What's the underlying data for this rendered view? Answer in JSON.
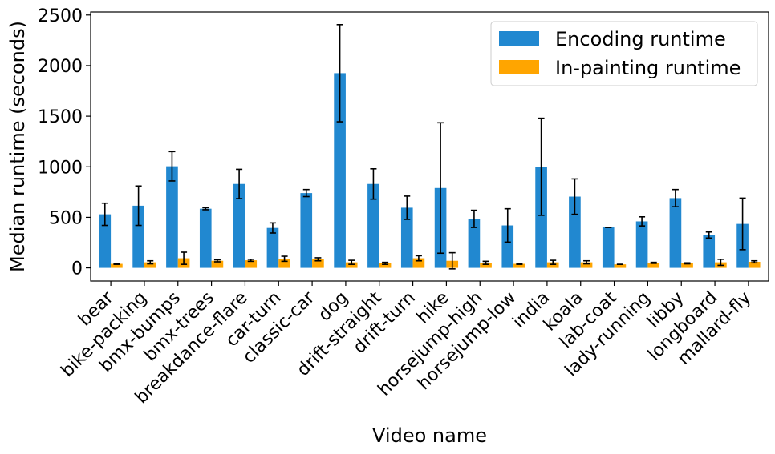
{
  "chart_data": {
    "type": "bar",
    "xlabel": "Video name",
    "ylabel": "Median runtime (seconds)",
    "ylim": [
      -130,
      2530
    ],
    "yticks": [
      0,
      500,
      1000,
      1500,
      2000,
      2500
    ],
    "grid": false,
    "legend_position": "top-right",
    "categories": [
      "bear",
      "bike-packing",
      "bmx-bumps",
      "bmx-trees",
      "breakdance-flare",
      "car-turn",
      "classic-car",
      "dog",
      "drift-straight",
      "drift-turn",
      "hike",
      "horsejump-high",
      "horsejump-low",
      "india",
      "koala",
      "lab-coat",
      "lady-running",
      "libby",
      "longboard",
      "mallard-fly"
    ],
    "series": [
      {
        "name": "Encoding runtime",
        "color": "#2188d0",
        "values": [
          530,
          615,
          1005,
          585,
          830,
          395,
          740,
          1925,
          830,
          595,
          790,
          485,
          420,
          1000,
          705,
          400,
          460,
          690,
          325,
          435
        ],
        "errors": [
          110,
          195,
          145,
          10,
          145,
          50,
          35,
          480,
          150,
          115,
          645,
          85,
          165,
          480,
          175,
          0,
          45,
          85,
          30,
          255
        ]
      },
      {
        "name": "In-painting runtime",
        "color": "#ffa500",
        "values": [
          40,
          55,
          95,
          70,
          75,
          90,
          85,
          55,
          45,
          95,
          70,
          50,
          40,
          55,
          55,
          35,
          50,
          45,
          55,
          60
        ],
        "errors": [
          5,
          15,
          60,
          10,
          10,
          25,
          15,
          20,
          10,
          25,
          80,
          15,
          5,
          20,
          15,
          0,
          5,
          5,
          30,
          10
        ]
      }
    ]
  }
}
